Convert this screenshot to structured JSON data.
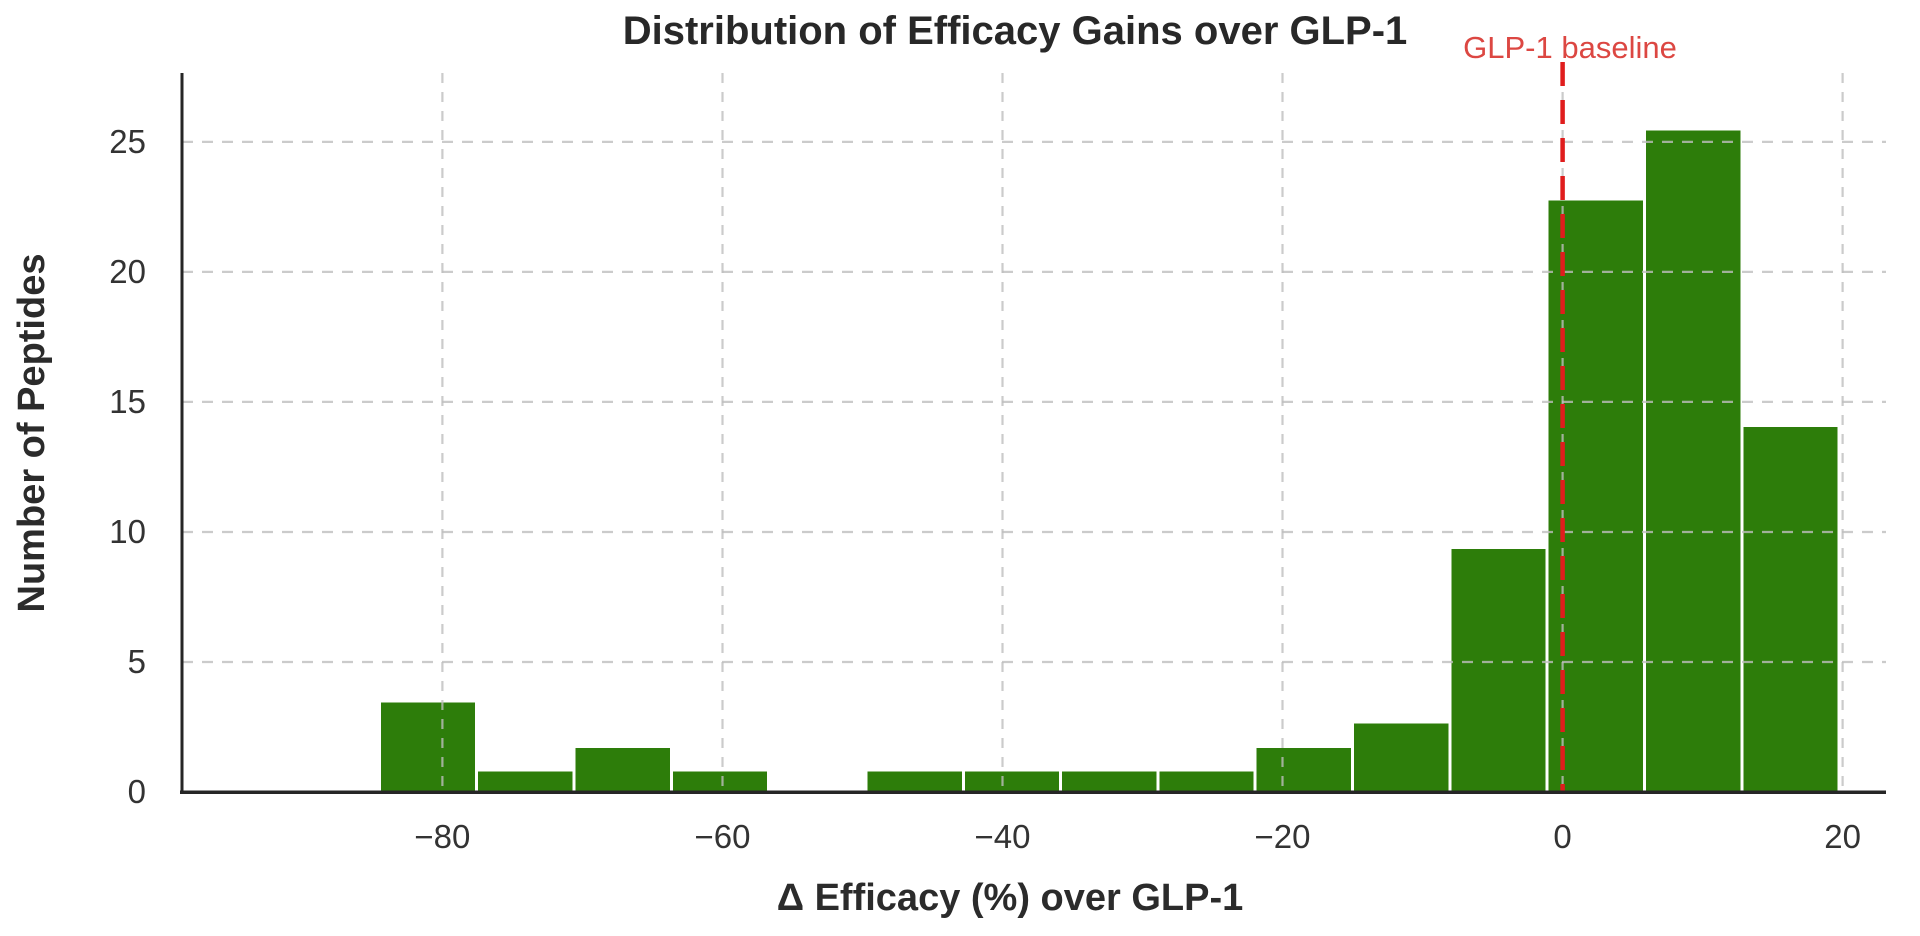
{
  "page": {
    "background_color": "#ffffff"
  },
  "chart": {
    "title": "Distribution of Efficacy Gains over GLP-1",
    "x_axis_label": "Δ Efficacy (%) over GLP-1",
    "y_axis_label": "Number of Peptides",
    "annotation": {
      "label": "GLP-1 baseline",
      "x_value": 0
    }
  },
  "chart_data": {
    "type": "bar",
    "subtype": "histogram",
    "title": "Distribution of Efficacy Gains over GLP-1",
    "xlabel": "Δ Efficacy (%) over GLP-1",
    "ylabel": "Number of Peptides",
    "bin_edges": [
      -84.5,
      -77.55,
      -70.6,
      -63.65,
      -56.7,
      -49.75,
      -42.8,
      -35.85,
      -28.9,
      -21.95,
      -15.0,
      -8.05,
      -1.1,
      5.85,
      12.8,
      19.75
    ],
    "counts": [
      3.5,
      0.85,
      1.75,
      0.85,
      0,
      0.85,
      0.85,
      0.85,
      0.85,
      1.75,
      2.7,
      9.4,
      22.8,
      25.5,
      14.1
    ],
    "x_ticks": {
      "values": [
        -80,
        -60,
        -40,
        -20,
        0,
        20
      ],
      "labels": [
        "−80",
        "−60",
        "−40",
        "−20",
        "0",
        "20"
      ]
    },
    "y_ticks": {
      "values": [
        0,
        5,
        10,
        15,
        20,
        25
      ],
      "labels": [
        "0",
        "5",
        "10",
        "15",
        "20",
        "25"
      ]
    },
    "xlim": [
      -98.6,
      23.1
    ],
    "ylim": [
      0,
      27.65
    ],
    "grid": true,
    "grid_dashed": true,
    "legend": "none",
    "baseline": {
      "x_value": 0,
      "style": "dashed-vertical"
    },
    "colors": {
      "bar_fill": "#2d7d0a",
      "bar_edge": "#ffffff",
      "baseline_line": "#e01d1d",
      "annotation_text": "#dc4742",
      "grid_line": "#bfbfbf",
      "spine": "#262626",
      "title_text": "#282828",
      "tick_text": "#333333"
    }
  }
}
